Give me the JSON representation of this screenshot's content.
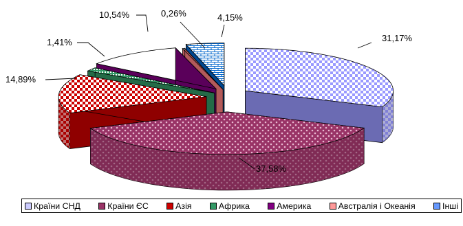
{
  "chart_data": {
    "type": "pie",
    "variant": "3d-exploded",
    "title": "",
    "slices": [
      {
        "name": "Країни СНД",
        "value": 31.17,
        "label": "31,17%",
        "color": "#9999ff"
      },
      {
        "name": "Країни ЄС",
        "value": 37.58,
        "label": "37,58%",
        "color": "#993366"
      },
      {
        "name": "Азія",
        "value": 14.89,
        "label": "14,89%",
        "color": "#cc0000"
      },
      {
        "name": "Африка",
        "value": 1.41,
        "label": "1,41%",
        "color": "#339966"
      },
      {
        "name": "Америка",
        "value": 10.54,
        "label": "10,54%",
        "color": "#800080"
      },
      {
        "name": "Австралія і Океанія",
        "value": 0.26,
        "label": "0,26%",
        "color": "#ff8080"
      },
      {
        "name": "Інші",
        "value": 4.15,
        "label": "4,15%",
        "color": "#0066cc"
      }
    ],
    "legend": "bottom"
  }
}
